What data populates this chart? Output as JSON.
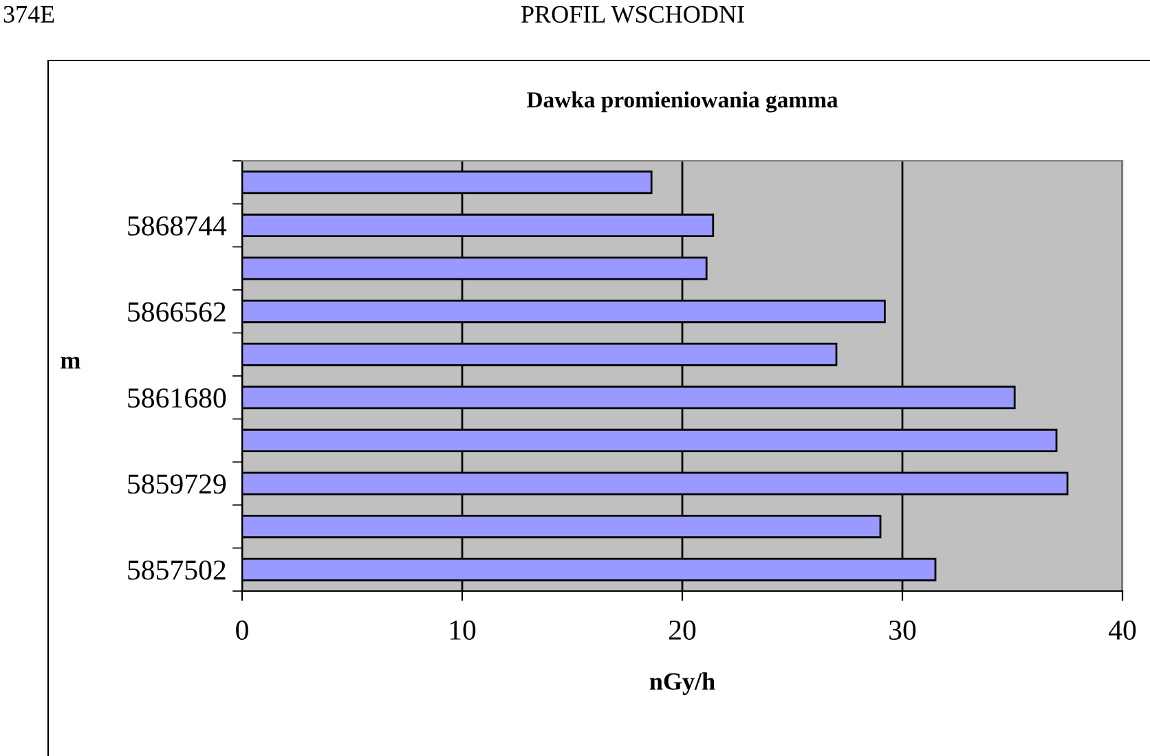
{
  "chart_data": {
    "type": "bar",
    "orientation": "horizontal",
    "title": "Dawka promieniowania gamma",
    "categories": [
      null,
      "5868744",
      null,
      "5866562",
      null,
      "5861680",
      null,
      "5859729",
      null,
      "5857502"
    ],
    "values": [
      18.6,
      21.4,
      21.1,
      29.2,
      27.0,
      35.1,
      37.0,
      37.5,
      29.0,
      31.5
    ],
    "color": "#9999ff",
    "xlim": [
      0,
      40
    ],
    "xticks": [
      0,
      10,
      20,
      30,
      40
    ],
    "xlabel": "nGy/h",
    "ylabel": "m",
    "grid": "x",
    "annotations": [
      "374E",
      "PROFIL WSCHODNI"
    ]
  }
}
